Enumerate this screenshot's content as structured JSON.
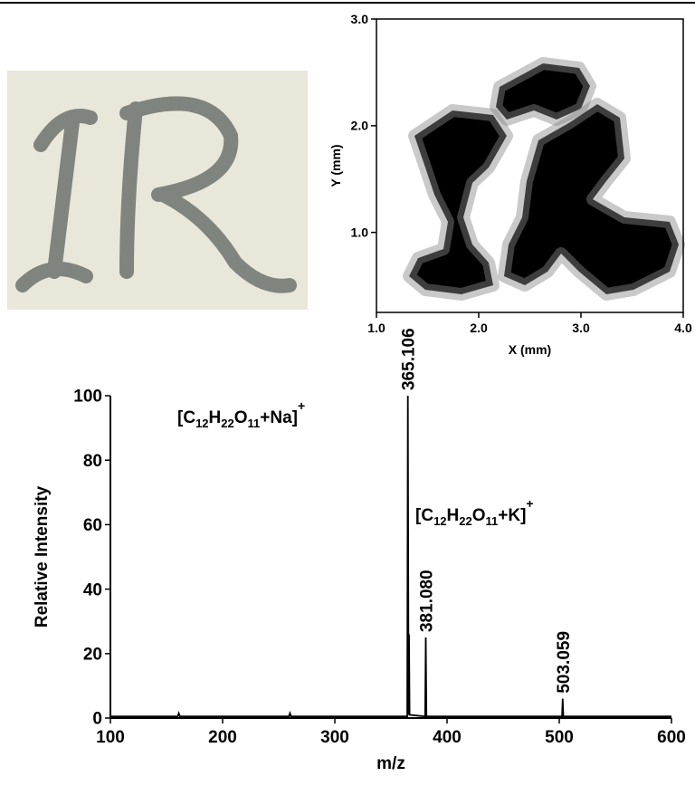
{
  "chart_data": [
    {
      "type": "image",
      "xlabel": "X (mm)",
      "ylabel": "Y (mm)",
      "xlim": [
        1,
        4
      ],
      "xticks": [
        {
          "value": 1,
          "label": "1.0"
        },
        {
          "value": 2,
          "label": "2.0"
        },
        {
          "value": 3,
          "label": "3.0"
        },
        {
          "value": 4,
          "label": "4.0"
        }
      ],
      "ylim": [
        0.25,
        3
      ],
      "yticks": [
        {
          "value": 1,
          "label": "1.0"
        },
        {
          "value": 2,
          "label": "2.0"
        },
        {
          "value": 3,
          "label": "3.0"
        }
      ]
    },
    {
      "type": "line",
      "xlabel": "m/z",
      "ylabel": "Relative Intensity",
      "color": "#000000",
      "x": [
        100,
        160,
        161,
        162,
        200,
        259,
        260,
        261,
        300,
        364.5,
        365.106,
        365.7,
        366.1,
        366.6,
        380.5,
        381.08,
        381.6,
        400,
        502.5,
        503.059,
        503.6,
        550,
        600
      ],
      "values": [
        0.5,
        0.5,
        1.5,
        0.5,
        0.5,
        0.5,
        1.5,
        0.5,
        0.5,
        0.5,
        100,
        1,
        26,
        1,
        0.5,
        25,
        0.5,
        0.5,
        0.5,
        6,
        0.5,
        0.5,
        0.5
      ],
      "xlim": [
        100,
        600
      ],
      "xticks": [
        100,
        200,
        300,
        400,
        500,
        600
      ],
      "ylim": [
        0,
        100
      ],
      "yticks": [
        0,
        20,
        40,
        60,
        80,
        100
      ],
      "annotations": [
        {
          "label": "365.106",
          "x": 365.106,
          "y": 100
        },
        {
          "label": "381.080",
          "x": 381.08,
          "y": 25
        },
        {
          "label": "503.059",
          "x": 503.059,
          "y": 6
        }
      ],
      "formulas": [
        [
          "[C",
          "12",
          "H",
          "22",
          "O",
          "11",
          "+Na]",
          "+"
        ],
        [
          "[C",
          "12",
          "H",
          "22",
          "O",
          "11",
          "+K]",
          "+"
        ]
      ]
    }
  ]
}
